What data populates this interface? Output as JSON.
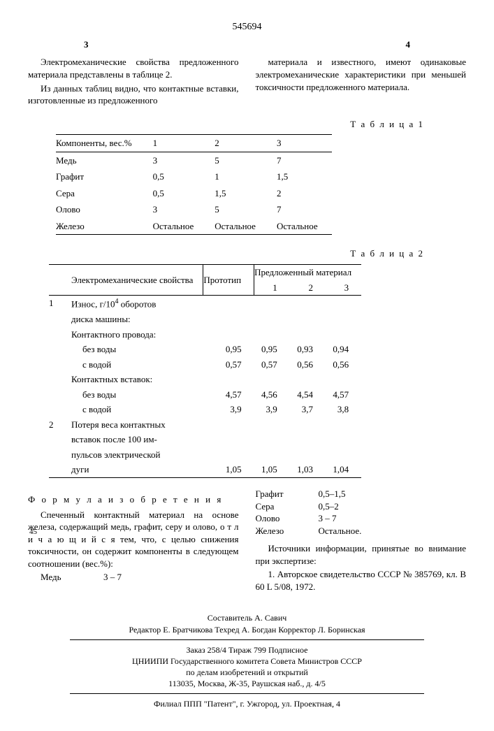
{
  "doc_number": "545694",
  "page_left": "3",
  "page_right": "4",
  "col_left": [
    "Электромеханические свойства предложенного материала представлены в таблице 2.",
    "Из данных таблиц видно, что контактные вставки, изготовленные из предложенного"
  ],
  "col_right": [
    "материала и известного, имеют одинаковые электромеханические характеристики при меньшей токсичности предложенного материала."
  ],
  "table1_label": "Т а б л и ц а  1",
  "table1": {
    "head": [
      "Компоненты, вес.%",
      "1",
      "2",
      "3"
    ],
    "rows": [
      [
        "Медь",
        "3",
        "5",
        "7"
      ],
      [
        "Графит",
        "0,5",
        "1",
        "1,5"
      ],
      [
        "Сера",
        "0,5",
        "1,5",
        "2"
      ],
      [
        "Олово",
        "3",
        "5",
        "7"
      ],
      [
        "Железо",
        "Остальное",
        "Остальное",
        "Остальное"
      ]
    ]
  },
  "table2_label": "Т а б л и ц а  2",
  "table2": {
    "head_left": "Электромеханические свойства",
    "head_proto": "Прототип",
    "head_prop": "Предложенный материал",
    "head_nums": [
      "1",
      "2",
      "3"
    ],
    "blocks": [
      {
        "n": "1",
        "title_l1": "Износ, г/10",
        "title_sup": "4",
        "title_l1b": " оборотов",
        "title_l2": "диска машины:",
        "sub1": "Контактного провода:",
        "rows1": [
          [
            "без воды",
            "0,95",
            "0,95",
            "0,93",
            "0,94"
          ],
          [
            "с водой",
            "0,57",
            "0,57",
            "0,56",
            "0,56"
          ]
        ],
        "sub2": "Контактных вставок:",
        "rows2": [
          [
            "без воды",
            "4,57",
            "4,56",
            "4,54",
            "4,57"
          ],
          [
            "с водой",
            "3,9",
            "3,9",
            "3,7",
            "3,8"
          ]
        ]
      },
      {
        "n": "2",
        "title_lines": [
          "Потеря веса контактных",
          "вставок после 100 им-",
          "пульсов электрической"
        ],
        "last": "дуги",
        "row": [
          "1,05",
          "1,05",
          "1,03",
          "1,04"
        ]
      }
    ]
  },
  "formula_head": "Ф о р м у л а  и з о б р е т е н и я",
  "formula_text": "Спеченный контактный материал на основе железа, содержащий медь, графит, серу и олово, о т л и ч а ю щ и й с я  тем, что, с целью снижения токсичности, он содержит компоненты в следующем соотношении (вес.%):",
  "margin45": "45",
  "comps_left": [
    [
      "Медь",
      "3 – 7"
    ]
  ],
  "comps_right": [
    [
      "Графит",
      "0,5–1,5"
    ],
    [
      "Сера",
      "0,5–2"
    ],
    [
      "Олово",
      "3 – 7"
    ],
    [
      "Железо",
      "Остальное."
    ]
  ],
  "sources_head": "Источники информации, принятые во внимание при экспертизе:",
  "source1": "1. Авторское свидетельство   СССР № 385769, кл. B 60 L 5/08, 1972.",
  "footer": {
    "l1": "Составитель А. Савич",
    "l2": "Редактор Е. Братчикова Техред А. Богдан   Корректор Л. Боринская",
    "l3": "Заказ 258/4          Тираж 799          Подписное",
    "l4": "ЦНИИПИ Государственного комитета Совета Министров СССР",
    "l5": "по делам изобретений и открытий",
    "l6": "113035, Москва, Ж-35, Раушская наб., д. 4/5",
    "l7": "Филиал ППП \"Патент\", г. Ужгород, ул. Проектная, 4"
  }
}
